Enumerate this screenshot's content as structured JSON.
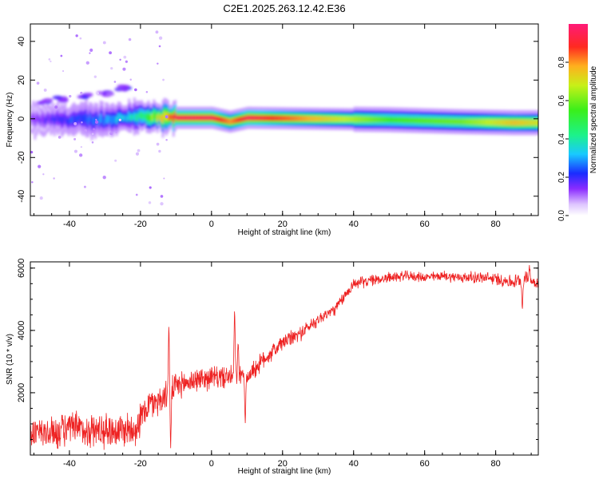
{
  "title": "C2E1.2025.263.12.42.E36",
  "chart_data": [
    {
      "type": "heatmap",
      "xlabel": "Height of straight line (km)",
      "ylabel": "Frequency (Hz)",
      "xlim": [
        -51,
        92
      ],
      "ylim": [
        -50,
        49
      ],
      "xticks": [
        -40,
        -20,
        0,
        20,
        40,
        60,
        80
      ],
      "xtick_labels": [
        "-40",
        "-20",
        "0",
        "20",
        "40",
        "60",
        "80"
      ],
      "yticks": [
        -40,
        -20,
        0,
        20,
        40
      ],
      "ytick_labels": [
        "-40",
        "-20",
        "0",
        "20",
        "40"
      ],
      "ridge": [
        {
          "x": -50,
          "f": -0.5,
          "amp": 0.15
        },
        {
          "x": -40,
          "f": -0.5,
          "amp": 0.25
        },
        {
          "x": -30,
          "f": -0.5,
          "amp": 0.3
        },
        {
          "x": -22,
          "f": 1.5,
          "amp": 0.4
        },
        {
          "x": -18,
          "f": 0.5,
          "amp": 0.6
        },
        {
          "x": -10,
          "f": 0.5,
          "amp": 0.95
        },
        {
          "x": 0,
          "f": 0.5,
          "amp": 0.95
        },
        {
          "x": 5,
          "f": -1.5,
          "amp": 0.8
        },
        {
          "x": 10,
          "f": 0.5,
          "amp": 0.95
        },
        {
          "x": 30,
          "f": 0.0,
          "amp": 0.75
        },
        {
          "x": 50,
          "f": -0.5,
          "amp": 0.55
        },
        {
          "x": 70,
          "f": -1.5,
          "amp": 0.6
        },
        {
          "x": 85,
          "f": -2.0,
          "amp": 0.75
        },
        {
          "x": 91,
          "f": -2.0,
          "amp": 0.7
        }
      ],
      "harmonic": [
        {
          "x": -47,
          "f": 9,
          "amp": 0.2
        },
        {
          "x": -42,
          "f": 10,
          "amp": 0.2
        },
        {
          "x": -35,
          "f": 12,
          "amp": 0.2
        },
        {
          "x": -30,
          "f": 13,
          "amp": 0.2
        },
        {
          "x": -25,
          "f": 16,
          "amp": 0.22
        }
      ]
    },
    {
      "type": "colorbar",
      "label": "Normalized spectral amplitude",
      "range": [
        0,
        1
      ],
      "ticks": [
        0,
        0.2,
        0.4,
        0.6,
        0.8
      ],
      "tick_labels": [
        "0.0",
        "0.2",
        "0.4",
        "0.6",
        "0.8"
      ]
    },
    {
      "type": "line",
      "xlabel": "Height of straight line (km)",
      "ylabel": "SNR (10 * v/v)",
      "xlim": [
        -51,
        92
      ],
      "ylim": [
        0,
        6200
      ],
      "xticks": [
        -40,
        -20,
        0,
        20,
        40,
        60,
        80
      ],
      "xtick_labels": [
        "-40",
        "-20",
        "0",
        "20",
        "40",
        "60",
        "80"
      ],
      "yticks": [
        2000,
        4000,
        6000
      ],
      "ytick_labels": [
        "2000",
        "4000",
        "6000"
      ],
      "color": "#ee2222",
      "series_trend": {
        "x": [
          -51,
          -45,
          -40,
          -35,
          -30,
          -25,
          -21,
          -18,
          -14,
          -10,
          -5,
          0,
          5,
          10,
          15,
          20,
          25,
          30,
          35,
          40,
          45,
          50,
          55,
          60,
          65,
          70,
          75,
          80,
          85,
          88,
          92
        ],
        "y": [
          700,
          700,
          850,
          800,
          800,
          800,
          900,
          1600,
          1800,
          2200,
          2400,
          2500,
          2500,
          2500,
          3100,
          3600,
          3900,
          4350,
          4700,
          5500,
          5600,
          5700,
          5750,
          5700,
          5750,
          5700,
          5700,
          5650,
          5550,
          5700,
          5500
        ]
      },
      "noise_amplitude": [
        {
          "x": -51,
          "amp": 650
        },
        {
          "x": -22,
          "amp": 700
        },
        {
          "x": -10,
          "amp": 500
        },
        {
          "x": 10,
          "amp": 400
        },
        {
          "x": 30,
          "amp": 250
        },
        {
          "x": 60,
          "amp": 180
        },
        {
          "x": 92,
          "amp": 280
        }
      ],
      "spikes": [
        {
          "x": -12.0,
          "y": 4300
        },
        {
          "x": -11.5,
          "y": 200
        },
        {
          "x": 6.5,
          "y": 4800
        },
        {
          "x": 7.5,
          "y": 3700
        },
        {
          "x": 9.5,
          "y": 1000
        },
        {
          "x": 87.5,
          "y": 4600
        },
        {
          "x": 89.5,
          "y": 6100
        }
      ]
    }
  ]
}
